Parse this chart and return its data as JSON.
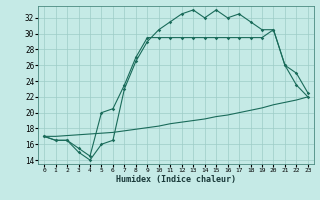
{
  "xlabel": "Humidex (Indice chaleur)",
  "bg_color": "#c5eae6",
  "grid_color": "#9eccc7",
  "line_color": "#1a6b5a",
  "xlim": [
    -0.5,
    23.5
  ],
  "ylim": [
    13.5,
    33.5
  ],
  "xticks": [
    0,
    1,
    2,
    3,
    4,
    5,
    6,
    7,
    8,
    9,
    10,
    11,
    12,
    13,
    14,
    15,
    16,
    17,
    18,
    19,
    20,
    21,
    22,
    23
  ],
  "yticks": [
    14,
    16,
    18,
    20,
    22,
    24,
    26,
    28,
    30,
    32
  ],
  "line1_x": [
    0,
    1,
    2,
    3,
    4,
    5,
    6,
    7,
    8,
    9,
    10,
    11,
    12,
    13,
    14,
    15,
    16,
    17,
    18,
    19,
    20,
    21,
    22,
    23
  ],
  "line1_y": [
    17.0,
    16.5,
    16.5,
    15.0,
    14.0,
    16.0,
    16.5,
    23.0,
    26.5,
    29.0,
    30.5,
    31.5,
    32.5,
    33.0,
    32.0,
    33.0,
    32.0,
    32.5,
    31.5,
    30.5,
    30.5,
    26.0,
    23.5,
    22.0
  ],
  "line2_x": [
    0,
    1,
    2,
    3,
    4,
    5,
    6,
    7,
    8,
    9,
    10,
    11,
    12,
    13,
    14,
    15,
    16,
    17,
    18,
    19,
    20,
    21,
    22,
    23
  ],
  "line2_y": [
    17.0,
    16.5,
    16.5,
    15.5,
    14.5,
    20.0,
    20.5,
    23.5,
    27.0,
    29.5,
    29.5,
    29.5,
    29.5,
    29.5,
    29.5,
    29.5,
    29.5,
    29.5,
    29.5,
    29.5,
    30.5,
    26.0,
    25.0,
    22.5
  ],
  "line3_x": [
    0,
    1,
    2,
    3,
    4,
    5,
    6,
    7,
    8,
    9,
    10,
    11,
    12,
    13,
    14,
    15,
    16,
    17,
    18,
    19,
    20,
    21,
    22,
    23
  ],
  "line3_y": [
    17.0,
    17.0,
    17.1,
    17.2,
    17.3,
    17.4,
    17.5,
    17.7,
    17.9,
    18.1,
    18.3,
    18.6,
    18.8,
    19.0,
    19.2,
    19.5,
    19.7,
    20.0,
    20.3,
    20.6,
    21.0,
    21.3,
    21.6,
    22.0
  ]
}
